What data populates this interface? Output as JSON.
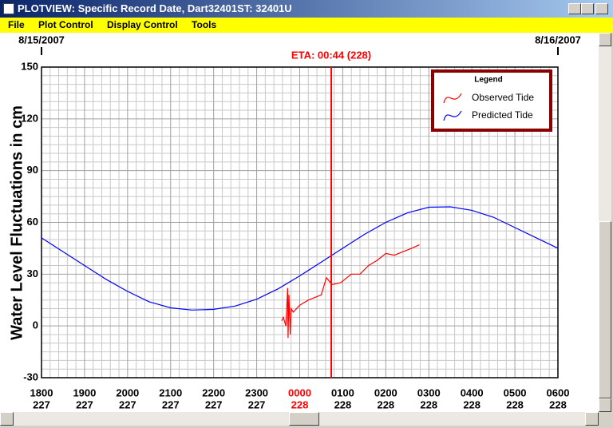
{
  "window": {
    "title": "PLOTVIEW: Specific Record Date, Dart32401ST: 32401U",
    "menu": [
      "File",
      "Plot Control",
      "Display Control",
      "Tools"
    ]
  },
  "chart_data": {
    "type": "line",
    "ylabel": "Water Level Fluctuations in cm",
    "ylim": [
      -30,
      150
    ],
    "yticks": [
      -30,
      0,
      30,
      60,
      90,
      120,
      150
    ],
    "xlim": [
      18,
      30
    ],
    "xticks": [
      {
        "value": 18,
        "label": "1800",
        "color": "#000000"
      },
      {
        "value": 19,
        "label": "1900",
        "color": "#000000"
      },
      {
        "value": 20,
        "label": "2000",
        "color": "#000000"
      },
      {
        "value": 21,
        "label": "2100",
        "color": "#000000"
      },
      {
        "value": 22,
        "label": "2200",
        "color": "#000000"
      },
      {
        "value": 23,
        "label": "2300",
        "color": "#000000"
      },
      {
        "value": 24,
        "label": "0000",
        "color": "#ff0000"
      },
      {
        "value": 25,
        "label": "0100",
        "color": "#000000"
      },
      {
        "value": 26,
        "label": "0200",
        "color": "#000000"
      },
      {
        "value": 27,
        "label": "0300",
        "color": "#000000"
      },
      {
        "value": 28,
        "label": "0400",
        "color": "#000000"
      },
      {
        "value": 29,
        "label": "0500",
        "color": "#000000"
      },
      {
        "value": 30,
        "label": "0600",
        "color": "#000000"
      }
    ],
    "xtick_sublabels": [
      "227",
      "227",
      "227",
      "227",
      "227",
      "227",
      "228",
      "228",
      "228",
      "228",
      "228",
      "228",
      "228"
    ],
    "date_labels": [
      {
        "value": 18,
        "label": "8/15/2007"
      },
      {
        "value": 30,
        "label": "8/16/2007"
      }
    ],
    "markers": [
      {
        "value": 24.733,
        "label": "ETA: 00:44 (228)",
        "color": "#ff0000"
      }
    ],
    "grid": true,
    "legend_title": "Legend",
    "legend": "top-right",
    "series": [
      {
        "name": "Observed Tide",
        "color": "#ff0000",
        "x": [
          23.58,
          23.62,
          23.68,
          23.72,
          23.73,
          23.75,
          23.78,
          23.8,
          23.85,
          24.0,
          24.2,
          24.5,
          24.62,
          24.75,
          24.95,
          25.2,
          25.4,
          25.6,
          25.8,
          26.0,
          26.2,
          26.4,
          26.6,
          26.78
        ],
        "values": [
          3,
          5,
          0,
          22,
          -7,
          18,
          -5,
          10,
          8,
          12,
          15,
          18,
          28,
          24,
          25,
          30,
          30,
          35,
          38,
          42,
          41,
          43,
          45,
          47
        ]
      },
      {
        "name": "Predicted Tide",
        "color": "#0000ff",
        "x": [
          18,
          18.5,
          19,
          19.5,
          20,
          20.5,
          21,
          21.5,
          22,
          22.5,
          23,
          23.5,
          24,
          24.5,
          25,
          25.5,
          26,
          26.5,
          27,
          27.5,
          28,
          28.5,
          29,
          29.5,
          30
        ],
        "values": [
          51,
          43,
          35,
          27,
          20,
          14,
          10.5,
          9.2,
          9.6,
          11.5,
          15.5,
          21.5,
          29,
          37,
          45,
          53,
          60,
          65.5,
          68.8,
          69,
          67,
          63,
          57,
          51,
          45
        ]
      }
    ]
  }
}
